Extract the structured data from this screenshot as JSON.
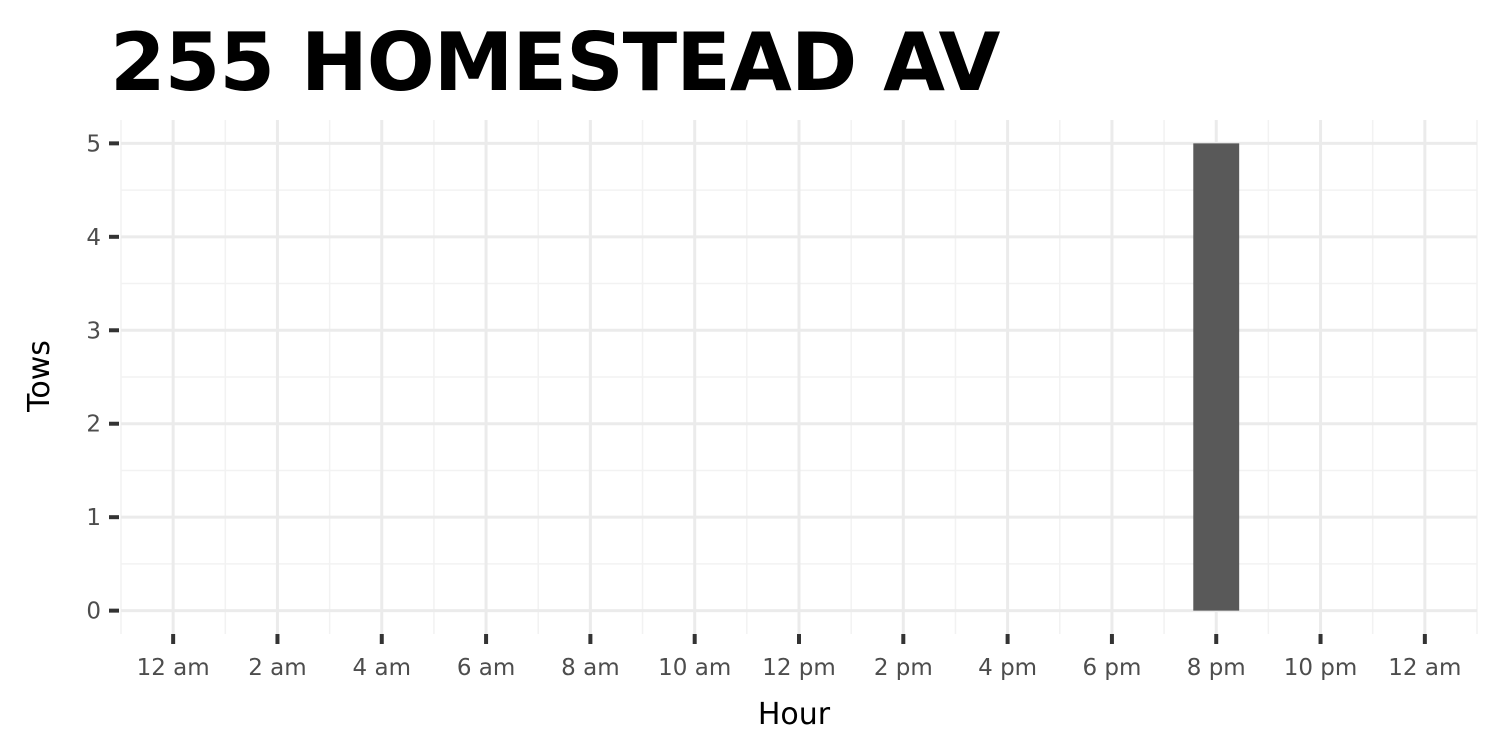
{
  "chart_data": {
    "type": "bar",
    "title": "255 HOMESTEAD AV",
    "xlabel": "Hour",
    "ylabel": "Tows",
    "x_ticks": [
      "12 am",
      "2 am",
      "4 am",
      "6 am",
      "8 am",
      "10 am",
      "12 pm",
      "2 pm",
      "4 pm",
      "6 pm",
      "8 pm",
      "10 pm",
      "12 am"
    ],
    "x_tick_hours": [
      0,
      2,
      4,
      6,
      8,
      10,
      12,
      14,
      16,
      18,
      20,
      22,
      24
    ],
    "xlim": [
      -1,
      25
    ],
    "y_ticks": [
      0,
      1,
      2,
      3,
      4,
      5
    ],
    "ylim": [
      -0.25,
      5.25
    ],
    "grid": true,
    "bar_color": "#595959",
    "series": [
      {
        "x": [
          20
        ],
        "values": [
          5
        ]
      }
    ]
  }
}
